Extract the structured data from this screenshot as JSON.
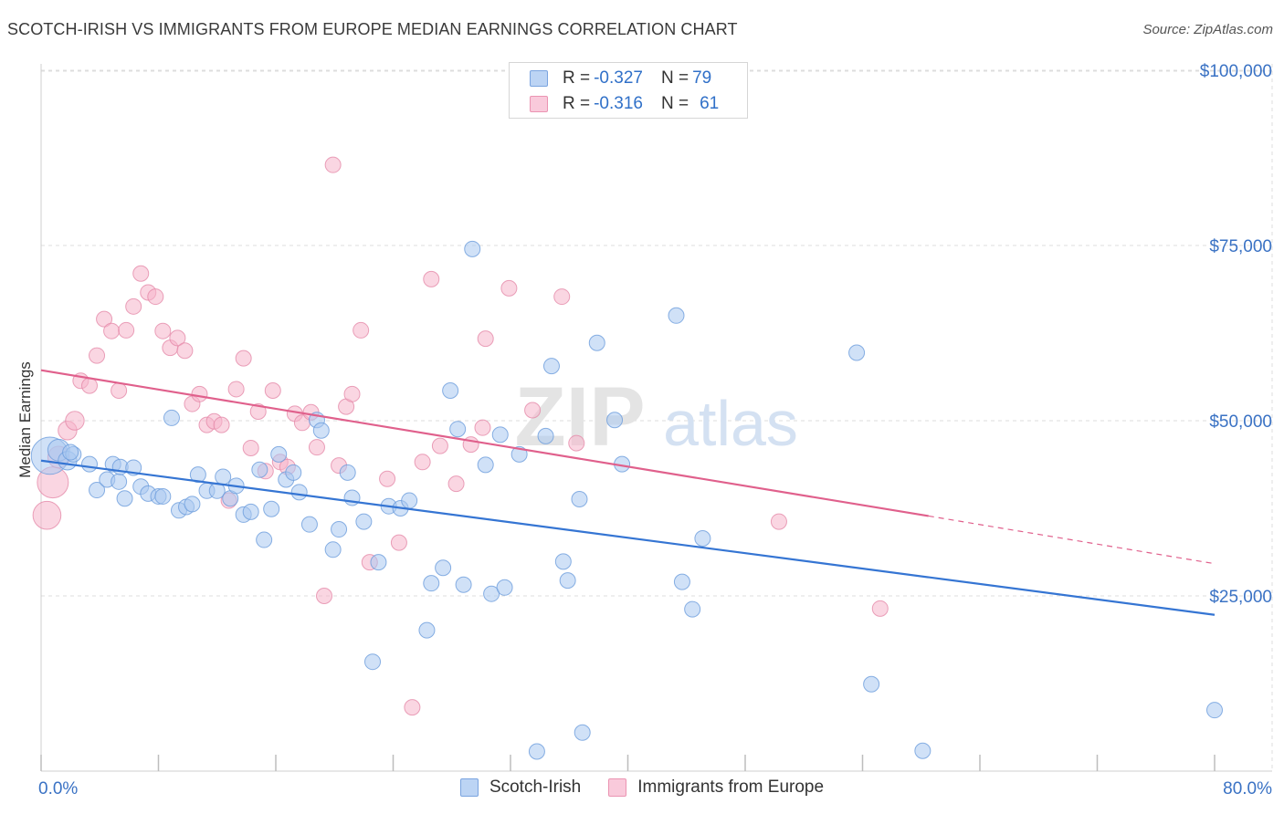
{
  "header": {
    "title": "SCOTCH-IRISH VS IMMIGRANTS FROM EUROPE MEDIAN EARNINGS CORRELATION CHART",
    "source": "Source: ZipAtlas.com"
  },
  "watermark": {
    "zip": "ZIP",
    "atlas": "atlas"
  },
  "legend_top": {
    "rows": [
      {
        "r_label": "R = ",
        "r_value": "-0.327",
        "n_label": "N = ",
        "n_value": "79"
      },
      {
        "r_label": "R = ",
        "r_value": "-0.316",
        "n_label": "N = ",
        "n_value": "61"
      }
    ]
  },
  "colors": {
    "blue": "#3575d3",
    "blue_fill": "#aac8f0",
    "pink": "#e0608c",
    "pink_fill": "#f5b5ca",
    "axis_label": "#3a72c4",
    "grid": "#dddddd"
  },
  "chart_data": {
    "type": "scatter",
    "title": "SCOTCH-IRISH VS IMMIGRANTS FROM EUROPE MEDIAN EARNINGS CORRELATION CHART",
    "xlabel": "",
    "ylabel": "Median Earnings",
    "xlim": [
      0,
      80
    ],
    "ylim": [
      0,
      105000
    ],
    "x_tick_labels": [
      "0.0%",
      "80.0%"
    ],
    "y_ticks": [
      25000,
      50000,
      75000,
      100000
    ],
    "y_tick_labels": [
      "$25,000",
      "$50,000",
      "$75,000",
      "$100,000"
    ],
    "grid": true,
    "legend_position": "top-center",
    "series": [
      {
        "name": "Scotch-Irish",
        "color": "#3575d3",
        "trend": {
          "x": [
            0,
            80
          ],
          "y": [
            44300,
            22300
          ]
        },
        "points": [
          [
            0.6,
            45000,
            2.4
          ],
          [
            1.2,
            45800,
            1.4
          ],
          [
            1.8,
            44300,
            1.2
          ],
          [
            2.2,
            45200,
            1.0
          ],
          [
            3.3,
            43800,
            1.0
          ],
          [
            4.9,
            43800,
            1.0
          ],
          [
            3.8,
            40100,
            1.0
          ],
          [
            4.5,
            41600,
            1.0
          ],
          [
            5.3,
            41300,
            1.0
          ],
          [
            5.4,
            43400,
            1.0
          ],
          [
            5.7,
            38900,
            1.0
          ],
          [
            6.3,
            43300,
            1.0
          ],
          [
            6.8,
            40600,
            1.0
          ],
          [
            7.3,
            39600,
            1.0
          ],
          [
            8.0,
            39200,
            1.0
          ],
          [
            8.3,
            39200,
            1.0
          ],
          [
            8.9,
            50400,
            1.0
          ],
          [
            9.4,
            37200,
            1.0
          ],
          [
            9.9,
            37700,
            1.0
          ],
          [
            10.3,
            38100,
            1.0
          ],
          [
            10.7,
            42300,
            1.0
          ],
          [
            11.3,
            40000,
            1.0
          ],
          [
            12.0,
            40000,
            1.0
          ],
          [
            12.4,
            42000,
            1.0
          ],
          [
            12.9,
            38900,
            1.0
          ],
          [
            13.3,
            40700,
            1.0
          ],
          [
            13.8,
            36600,
            1.0
          ],
          [
            14.3,
            37000,
            1.0
          ],
          [
            14.9,
            43000,
            1.0
          ],
          [
            15.2,
            33000,
            1.0
          ],
          [
            15.7,
            37400,
            1.0
          ],
          [
            16.2,
            45200,
            1.0
          ],
          [
            16.7,
            41600,
            1.0
          ],
          [
            17.2,
            42600,
            1.0
          ],
          [
            17.6,
            39800,
            1.0
          ],
          [
            18.3,
            35200,
            1.0
          ],
          [
            18.8,
            50100,
            1.0
          ],
          [
            19.1,
            48600,
            1.0
          ],
          [
            19.9,
            31600,
            1.0
          ],
          [
            20.3,
            34500,
            1.0
          ],
          [
            20.9,
            42600,
            1.0
          ],
          [
            21.2,
            39000,
            1.0
          ],
          [
            22.0,
            35600,
            1.0
          ],
          [
            22.6,
            15600,
            1.0
          ],
          [
            23.0,
            29800,
            1.0
          ],
          [
            23.7,
            37800,
            1.0
          ],
          [
            24.5,
            37500,
            1.0
          ],
          [
            25.1,
            38600,
            1.0
          ],
          [
            26.3,
            20100,
            1.0
          ],
          [
            26.6,
            26800,
            1.0
          ],
          [
            27.4,
            29000,
            1.0
          ],
          [
            27.9,
            54300,
            1.0
          ],
          [
            28.4,
            48800,
            1.0
          ],
          [
            28.8,
            26600,
            1.0
          ],
          [
            29.4,
            74500,
            1.0
          ],
          [
            30.3,
            43700,
            1.0
          ],
          [
            30.7,
            25300,
            1.0
          ],
          [
            31.3,
            48000,
            1.0
          ],
          [
            31.6,
            26200,
            1.0
          ],
          [
            32.6,
            45200,
            1.0
          ],
          [
            33.8,
            2800,
            1.0
          ],
          [
            34.4,
            47800,
            1.0
          ],
          [
            34.8,
            57800,
            1.0
          ],
          [
            35.6,
            29900,
            1.0
          ],
          [
            35.9,
            27200,
            1.0
          ],
          [
            36.7,
            38800,
            1.0
          ],
          [
            36.9,
            5500,
            1.0
          ],
          [
            37.9,
            61100,
            1.0
          ],
          [
            39.1,
            50100,
            1.0
          ],
          [
            39.6,
            43800,
            1.0
          ],
          [
            43.3,
            65000,
            1.0
          ],
          [
            43.7,
            27000,
            1.0
          ],
          [
            44.4,
            23100,
            1.0
          ],
          [
            45.1,
            33200,
            1.0
          ],
          [
            55.6,
            59700,
            1.0
          ],
          [
            56.6,
            12400,
            1.0
          ],
          [
            60.1,
            2900,
            1.0
          ],
          [
            80.0,
            8700,
            1.0
          ],
          [
            2.0,
            45500,
            1.0
          ]
        ]
      },
      {
        "name": "Immigrants from Europe",
        "color": "#e0608c",
        "trend": {
          "x": [
            0,
            60.5
          ],
          "y": [
            57200,
            36400
          ]
        },
        "trend_dashed": {
          "x": [
            60.5,
            80
          ],
          "y": [
            36400,
            29600
          ]
        },
        "points": [
          [
            0.4,
            36500,
            1.8
          ],
          [
            0.8,
            41200,
            2.0
          ],
          [
            1.2,
            44800,
            1.4
          ],
          [
            1.8,
            48600,
            1.2
          ],
          [
            2.3,
            50000,
            1.2
          ],
          [
            2.7,
            55700,
            1.0
          ],
          [
            3.3,
            55000,
            1.0
          ],
          [
            3.8,
            59300,
            1.0
          ],
          [
            4.3,
            64500,
            1.0
          ],
          [
            4.8,
            62800,
            1.0
          ],
          [
            5.3,
            54300,
            1.0
          ],
          [
            5.8,
            62900,
            1.0
          ],
          [
            6.3,
            66300,
            1.0
          ],
          [
            6.8,
            71000,
            1.0
          ],
          [
            7.3,
            68300,
            1.0
          ],
          [
            7.8,
            67700,
            1.0
          ],
          [
            8.3,
            62800,
            1.0
          ],
          [
            8.8,
            60400,
            1.0
          ],
          [
            9.3,
            61800,
            1.0
          ],
          [
            9.8,
            60000,
            1.0
          ],
          [
            10.3,
            52400,
            1.0
          ],
          [
            10.8,
            53800,
            1.0
          ],
          [
            11.3,
            49400,
            1.0
          ],
          [
            11.8,
            49900,
            1.0
          ],
          [
            12.3,
            49400,
            1.0
          ],
          [
            12.8,
            38600,
            1.0
          ],
          [
            13.3,
            54500,
            1.0
          ],
          [
            13.8,
            58900,
            1.0
          ],
          [
            14.3,
            46100,
            1.0
          ],
          [
            14.8,
            51300,
            1.0
          ],
          [
            15.3,
            42800,
            1.0
          ],
          [
            15.8,
            54300,
            1.0
          ],
          [
            16.3,
            44100,
            1.0
          ],
          [
            16.8,
            43400,
            1.0
          ],
          [
            17.3,
            51000,
            1.0
          ],
          [
            17.8,
            49700,
            1.0
          ],
          [
            18.4,
            51200,
            1.0
          ],
          [
            18.8,
            46200,
            1.0
          ],
          [
            19.3,
            25000,
            1.0
          ],
          [
            19.9,
            86500,
            1.0
          ],
          [
            20.3,
            43600,
            1.0
          ],
          [
            20.8,
            52000,
            1.0
          ],
          [
            21.2,
            53800,
            1.0
          ],
          [
            21.8,
            62900,
            1.0
          ],
          [
            22.4,
            29800,
            1.0
          ],
          [
            23.6,
            41700,
            1.0
          ],
          [
            24.4,
            32600,
            1.0
          ],
          [
            25.3,
            9100,
            1.0
          ],
          [
            26.0,
            44100,
            1.0
          ],
          [
            26.6,
            70200,
            1.0
          ],
          [
            27.2,
            46400,
            1.0
          ],
          [
            28.3,
            41000,
            1.0
          ],
          [
            29.3,
            46600,
            1.0
          ],
          [
            30.1,
            49000,
            1.0
          ],
          [
            30.3,
            61700,
            1.0
          ],
          [
            31.9,
            68900,
            1.0
          ],
          [
            33.5,
            51500,
            1.0
          ],
          [
            35.5,
            67700,
            1.0
          ],
          [
            36.5,
            46800,
            1.0
          ],
          [
            50.3,
            35600,
            1.0
          ],
          [
            57.2,
            23200,
            1.0
          ]
        ]
      }
    ]
  },
  "bottom_legend": [
    {
      "label": "Scotch-Irish"
    },
    {
      "label": "Immigrants from Europe"
    }
  ]
}
